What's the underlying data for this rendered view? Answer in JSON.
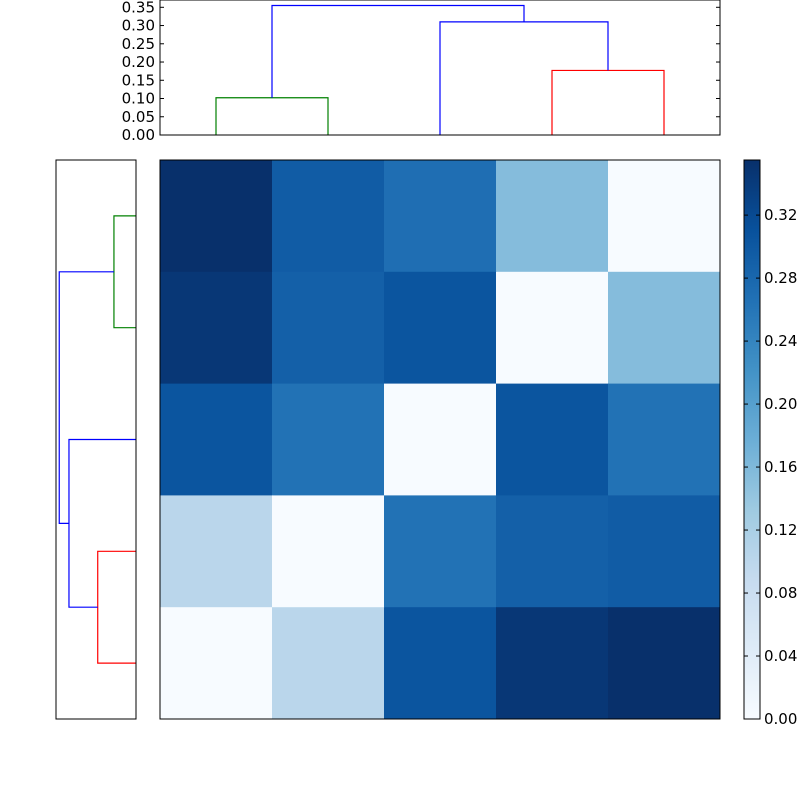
{
  "chart_data": [
    {
      "type": "dendrogram",
      "orientation": "top",
      "ylim": [
        0,
        0.37
      ],
      "yticks": [
        "0.00",
        "0.05",
        "0.10",
        "0.15",
        "0.20",
        "0.25",
        "0.30",
        "0.35"
      ],
      "leaves": 5,
      "links": [
        {
          "left_x": 0.5,
          "left_h": 0.0,
          "right_x": 1.5,
          "right_h": 0.0,
          "h": 0.102,
          "color": "#008000"
        },
        {
          "left_x": 3.5,
          "left_h": 0.0,
          "right_x": 4.5,
          "right_h": 0.0,
          "h": 0.177,
          "color": "#ff0000"
        },
        {
          "left_x": 2.5,
          "left_h": 0.0,
          "right_x": 4.0,
          "right_h": 0.177,
          "h": 0.31,
          "color": "#0000ff"
        },
        {
          "left_x": 1.0,
          "left_h": 0.102,
          "right_x": 3.25,
          "right_h": 0.31,
          "h": 0.355,
          "color": "#0000ff"
        }
      ]
    },
    {
      "type": "dendrogram",
      "orientation": "left",
      "leaves": 5,
      "links": [
        {
          "a": 0.5,
          "a_h": 0.0,
          "b": 1.5,
          "b_h": 0.0,
          "h": 0.102,
          "color": "#008000"
        },
        {
          "a": 3.5,
          "a_h": 0.0,
          "b": 4.5,
          "b_h": 0.0,
          "h": 0.177,
          "color": "#ff0000"
        },
        {
          "a": 2.5,
          "a_h": 0.0,
          "b": 4.0,
          "b_h": 0.177,
          "h": 0.31,
          "color": "#0000ff"
        },
        {
          "a": 1.0,
          "a_h": 0.102,
          "b": 3.25,
          "b_h": 0.31,
          "h": 0.355,
          "color": "#0000ff"
        }
      ]
    },
    {
      "type": "heatmap",
      "colormap": "Blues",
      "vmin": 0.0,
      "vmax": 0.355,
      "rows_top_to_bottom": [
        [
          0.355,
          0.295,
          0.27,
          0.155,
          0.0
        ],
        [
          0.345,
          0.29,
          0.305,
          0.0,
          0.155
        ],
        [
          0.305,
          0.265,
          0.0,
          0.305,
          0.265
        ],
        [
          0.102,
          0.0,
          0.265,
          0.29,
          0.295
        ],
        [
          0.0,
          0.102,
          0.305,
          0.345,
          0.355
        ]
      ]
    },
    {
      "type": "colorbar",
      "ticks": [
        "0.00",
        "0.04",
        "0.08",
        "0.12",
        "0.16",
        "0.20",
        "0.24",
        "0.28",
        "0.32"
      ],
      "tick_values": [
        0.0,
        0.04,
        0.08,
        0.12,
        0.16,
        0.2,
        0.24,
        0.28,
        0.32
      ],
      "vmin": 0.0,
      "vmax": 0.355
    }
  ],
  "colors": {
    "axis": "#000000",
    "blues_stops": [
      "#f7fbff",
      "#deebf7",
      "#c6dbef",
      "#9ecae1",
      "#6baed6",
      "#4292c6",
      "#2171b5",
      "#08519c",
      "#08306b"
    ]
  }
}
